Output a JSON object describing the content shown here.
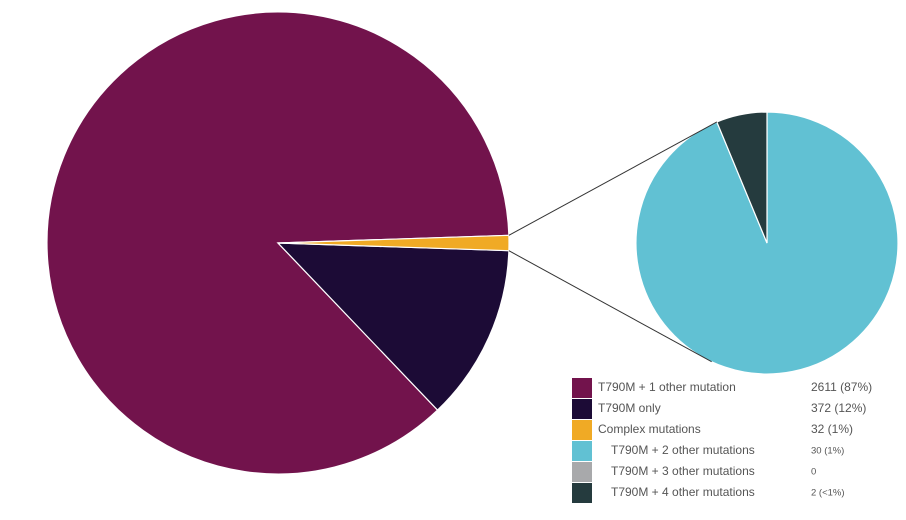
{
  "chart_data": {
    "type": "pie-of-pie",
    "categories": [
      "T790M + 1 other mutation",
      "T790M only",
      "Complex mutations"
    ],
    "values": [
      2611,
      372,
      32
    ],
    "value_labels": [
      "2611 (87%)",
      "372 (12%)",
      "32 (1%)"
    ],
    "colors": [
      "#72134c",
      "#1c0b36",
      "#f0aa25"
    ],
    "breakout": {
      "type": "pie",
      "categories": [
        "T790M + 2 other mutations",
        "T790M + 3 other mutations",
        "T790M + 4 other mutations"
      ],
      "values": [
        30,
        0,
        2
      ],
      "value_labels": [
        "30 (1%)",
        "0",
        "2 (<1%)"
      ],
      "colors": [
        "#61c1d3",
        "#a8a9ab",
        "#253b3e"
      ]
    }
  }
}
